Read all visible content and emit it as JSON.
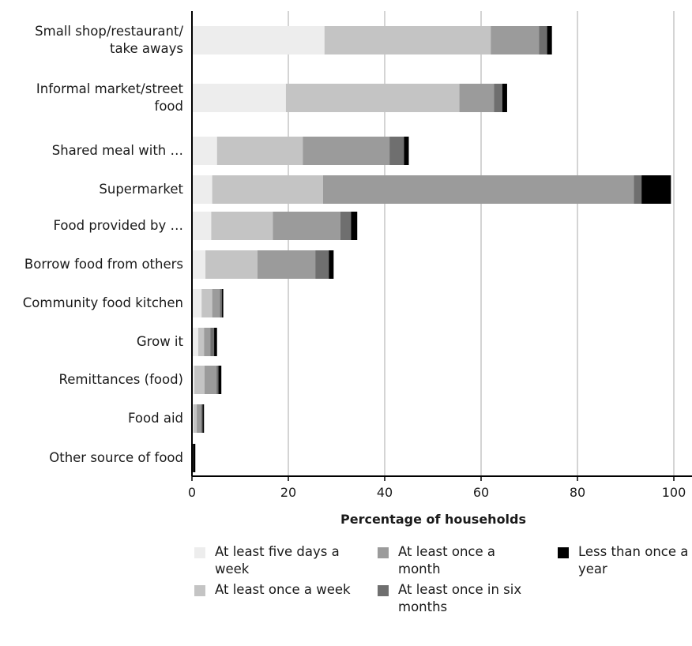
{
  "chart_data": {
    "type": "bar",
    "orientation": "horizontal",
    "stacked": true,
    "categories": [
      "Small shop/restaurant/\ntake aways",
      "Informal market/street\nfood",
      "Shared meal with …",
      "Supermarket",
      "Food provided by …",
      "Borrow food from others",
      "Community food kitchen",
      "Grow it",
      "Remittances (food)",
      "Food aid",
      "Other source of food"
    ],
    "series": [
      {
        "name": "At least five days a week",
        "color": "#ededed",
        "values": [
          27.5,
          19.5,
          5.2,
          4.2,
          4.0,
          2.8,
          2.0,
          1.3,
          0.5,
          0.3,
          0.0
        ]
      },
      {
        "name": "At least once a week",
        "color": "#c4c4c4",
        "values": [
          34.5,
          36.0,
          17.8,
          23.0,
          12.8,
          10.8,
          2.2,
          1.2,
          2.1,
          0.7,
          0.0
        ]
      },
      {
        "name": "At least once a month",
        "color": "#9b9b9b",
        "values": [
          10.0,
          7.2,
          18.0,
          64.5,
          14.0,
          12.0,
          1.6,
          1.3,
          2.5,
          0.9,
          0.1
        ]
      },
      {
        "name": "At least once in six months",
        "color": "#6f6f6f",
        "values": [
          1.7,
          1.7,
          3.0,
          1.6,
          2.2,
          2.8,
          0.4,
          0.8,
          0.4,
          0.3,
          0.1
        ]
      },
      {
        "name": "Less than once a year",
        "color": "#000000",
        "values": [
          1.0,
          1.0,
          1.0,
          6.1,
          1.3,
          1.0,
          0.3,
          0.6,
          0.6,
          0.3,
          0.5
        ]
      }
    ],
    "xlabel": "Percentage of households",
    "ylabel": "",
    "xlim": [
      0,
      100
    ],
    "xticks": [
      0,
      20,
      40,
      60,
      80,
      100
    ],
    "grid": "vertical lines",
    "legend_position": "bottom"
  }
}
